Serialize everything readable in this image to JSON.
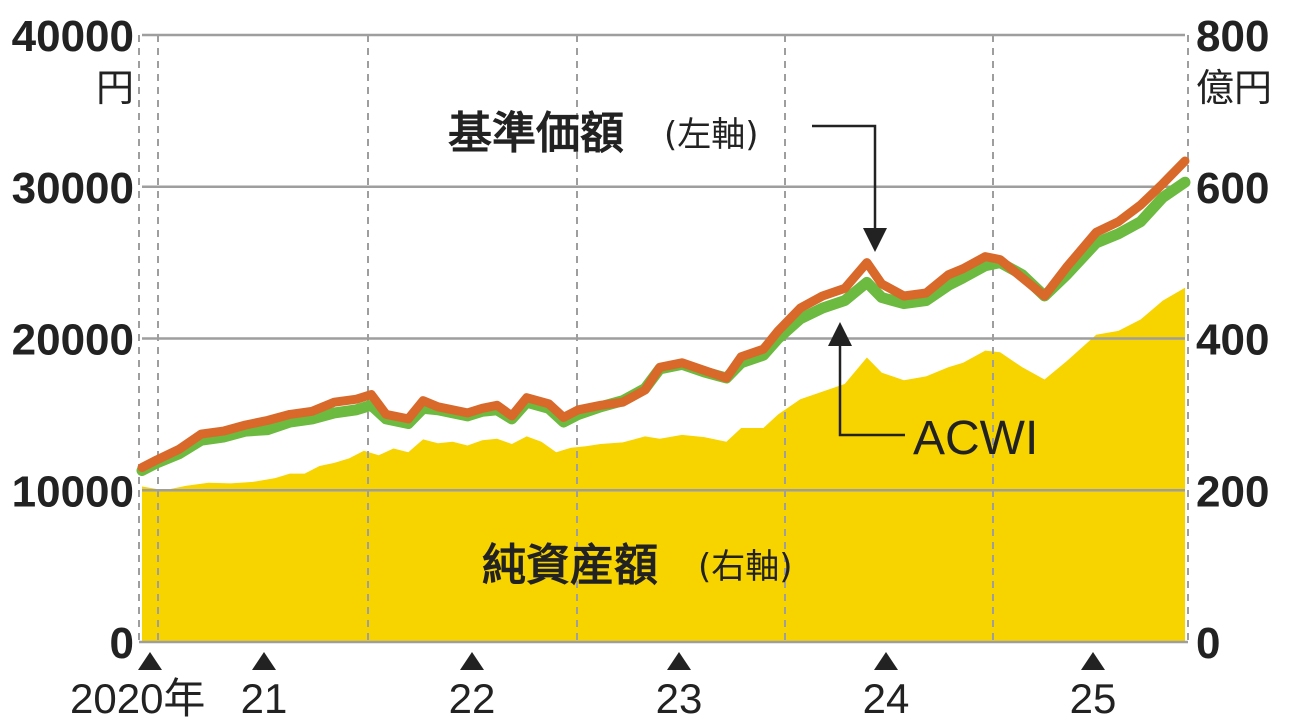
{
  "chart_data": {
    "type": "line",
    "x_start": "2020-01",
    "x_end": "2025-06",
    "left_axis": {
      "unit": "円",
      "ticks": [
        "0",
        "10000",
        "20000",
        "30000",
        "40000"
      ],
      "min": 0,
      "max": 40000
    },
    "right_axis": {
      "unit": "億円",
      "ticks": [
        "0",
        "200",
        "400",
        "600",
        "800"
      ],
      "min": 0,
      "max": 800
    },
    "x_tick_labels": [
      {
        "label": "2020年",
        "year": 2020
      },
      {
        "label": "21",
        "year": 2021
      },
      {
        "label": "22",
        "year": 2022
      },
      {
        "label": "23",
        "year": 2023
      },
      {
        "label": "24",
        "year": 2024
      },
      {
        "label": "25",
        "year": 2025
      }
    ],
    "series": [
      {
        "name": "基準価額",
        "name_suffix": "(左軸)",
        "axis": "left",
        "type": "line",
        "color": "#d9692a",
        "values": [
          [
            2020.0,
            11500
          ],
          [
            2020.1,
            12000
          ],
          [
            2020.25,
            12700
          ],
          [
            2020.4,
            13700
          ],
          [
            2020.55,
            13900
          ],
          [
            2020.7,
            14300
          ],
          [
            2020.85,
            14600
          ],
          [
            2021.0,
            15000
          ],
          [
            2021.15,
            15200
          ],
          [
            2021.3,
            15800
          ],
          [
            2021.45,
            16000
          ],
          [
            2021.55,
            16300
          ],
          [
            2021.65,
            15000
          ],
          [
            2021.8,
            14700
          ],
          [
            2021.9,
            15900
          ],
          [
            2022.0,
            15500
          ],
          [
            2022.2,
            15100
          ],
          [
            2022.3,
            15400
          ],
          [
            2022.4,
            15600
          ],
          [
            2022.5,
            14900
          ],
          [
            2022.6,
            16100
          ],
          [
            2022.75,
            15700
          ],
          [
            2022.85,
            14800
          ],
          [
            2022.95,
            15300
          ],
          [
            2023.1,
            15600
          ],
          [
            2023.25,
            15800
          ],
          [
            2023.4,
            16600
          ],
          [
            2023.5,
            18100
          ],
          [
            2023.65,
            18400
          ],
          [
            2023.8,
            17900
          ],
          [
            2023.95,
            17400
          ],
          [
            2024.05,
            18800
          ],
          [
            2024.2,
            19300
          ],
          [
            2024.3,
            20500
          ],
          [
            2024.45,
            22000
          ],
          [
            2024.6,
            22800
          ],
          [
            2024.75,
            23300
          ],
          [
            2024.9,
            25000
          ],
          [
            2025.0,
            23600
          ],
          [
            2025.15,
            22800
          ],
          [
            2025.3,
            23000
          ],
          [
            2025.45,
            24200
          ],
          [
            2025.55,
            24600
          ],
          [
            2025.7,
            25400
          ],
          [
            2025.8,
            25200
          ],
          [
            2025.95,
            24000
          ],
          [
            2026.1,
            22800
          ],
          [
            2026.25,
            24700
          ],
          [
            2026.45,
            27000
          ],
          [
            2026.6,
            27700
          ],
          [
            2026.75,
            28800
          ],
          [
            2026.9,
            30200
          ],
          [
            2027.05,
            31700
          ]
        ]
      },
      {
        "name": "ACWI",
        "axis": "left",
        "type": "line",
        "color": "#6cba3f",
        "values": [
          [
            2020.0,
            11300
          ],
          [
            2020.1,
            11800
          ],
          [
            2020.25,
            12400
          ],
          [
            2020.4,
            13300
          ],
          [
            2020.55,
            13500
          ],
          [
            2020.7,
            13900
          ],
          [
            2020.85,
            14000
          ],
          [
            2021.0,
            14500
          ],
          [
            2021.15,
            14700
          ],
          [
            2021.3,
            15100
          ],
          [
            2021.45,
            15300
          ],
          [
            2021.55,
            15600
          ],
          [
            2021.65,
            14700
          ],
          [
            2021.8,
            14400
          ],
          [
            2021.9,
            15400
          ],
          [
            2022.0,
            15300
          ],
          [
            2022.2,
            14900
          ],
          [
            2022.3,
            15200
          ],
          [
            2022.4,
            15300
          ],
          [
            2022.5,
            14700
          ],
          [
            2022.6,
            15800
          ],
          [
            2022.75,
            15400
          ],
          [
            2022.85,
            14500
          ],
          [
            2022.95,
            15000
          ],
          [
            2023.1,
            15500
          ],
          [
            2023.25,
            15900
          ],
          [
            2023.4,
            16700
          ],
          [
            2023.5,
            18000
          ],
          [
            2023.65,
            18300
          ],
          [
            2023.8,
            17800
          ],
          [
            2023.95,
            17400
          ],
          [
            2024.05,
            18400
          ],
          [
            2024.2,
            18900
          ],
          [
            2024.3,
            20000
          ],
          [
            2024.45,
            21300
          ],
          [
            2024.6,
            22000
          ],
          [
            2024.75,
            22500
          ],
          [
            2024.9,
            23700
          ],
          [
            2025.0,
            22700
          ],
          [
            2025.15,
            22300
          ],
          [
            2025.3,
            22500
          ],
          [
            2025.45,
            23500
          ],
          [
            2025.55,
            24000
          ],
          [
            2025.7,
            24800
          ],
          [
            2025.8,
            25000
          ],
          [
            2025.95,
            24200
          ],
          [
            2026.1,
            22800
          ],
          [
            2026.25,
            24200
          ],
          [
            2026.45,
            26300
          ],
          [
            2026.6,
            26900
          ],
          [
            2026.75,
            27700
          ],
          [
            2026.9,
            29300
          ],
          [
            2027.05,
            30300
          ]
        ]
      },
      {
        "name": "純資産額",
        "name_suffix": "(右軸)",
        "axis": "right",
        "type": "area",
        "color": "#f7d300",
        "values": [
          [
            2020.0,
            205
          ],
          [
            2020.15,
            200
          ],
          [
            2020.3,
            206
          ],
          [
            2020.45,
            210
          ],
          [
            2020.6,
            209
          ],
          [
            2020.75,
            211
          ],
          [
            2020.9,
            216
          ],
          [
            2021.0,
            222
          ],
          [
            2021.1,
            222
          ],
          [
            2021.2,
            232
          ],
          [
            2021.3,
            236
          ],
          [
            2021.4,
            242
          ],
          [
            2021.5,
            252
          ],
          [
            2021.6,
            246
          ],
          [
            2021.7,
            255
          ],
          [
            2021.8,
            250
          ],
          [
            2021.9,
            267
          ],
          [
            2022.0,
            262
          ],
          [
            2022.1,
            264
          ],
          [
            2022.2,
            259
          ],
          [
            2022.3,
            266
          ],
          [
            2022.4,
            268
          ],
          [
            2022.5,
            261
          ],
          [
            2022.6,
            271
          ],
          [
            2022.7,
            264
          ],
          [
            2022.8,
            250
          ],
          [
            2022.9,
            256
          ],
          [
            2023.0,
            258
          ],
          [
            2023.1,
            261
          ],
          [
            2023.25,
            263
          ],
          [
            2023.4,
            271
          ],
          [
            2023.5,
            268
          ],
          [
            2023.65,
            273
          ],
          [
            2023.8,
            270
          ],
          [
            2023.95,
            264
          ],
          [
            2024.05,
            282
          ],
          [
            2024.2,
            282
          ],
          [
            2024.3,
            300
          ],
          [
            2024.45,
            320
          ],
          [
            2024.6,
            330
          ],
          [
            2024.75,
            340
          ],
          [
            2024.9,
            375
          ],
          [
            2025.0,
            355
          ],
          [
            2025.15,
            345
          ],
          [
            2025.3,
            350
          ],
          [
            2025.45,
            362
          ],
          [
            2025.55,
            368
          ],
          [
            2025.7,
            384
          ],
          [
            2025.8,
            382
          ],
          [
            2025.95,
            362
          ],
          [
            2026.1,
            346
          ],
          [
            2026.25,
            370
          ],
          [
            2026.45,
            405
          ],
          [
            2026.6,
            410
          ],
          [
            2026.75,
            425
          ],
          [
            2026.9,
            450
          ],
          [
            2027.05,
            467
          ]
        ]
      }
    ],
    "annotations": [
      {
        "text": "基準価額",
        "suffix": "(左軸)",
        "points_to": "基準価額"
      },
      {
        "text": "ACWI",
        "points_to": "ACWI"
      },
      {
        "text": "純資産額",
        "suffix": "(右軸)"
      }
    ],
    "grid": true
  }
}
